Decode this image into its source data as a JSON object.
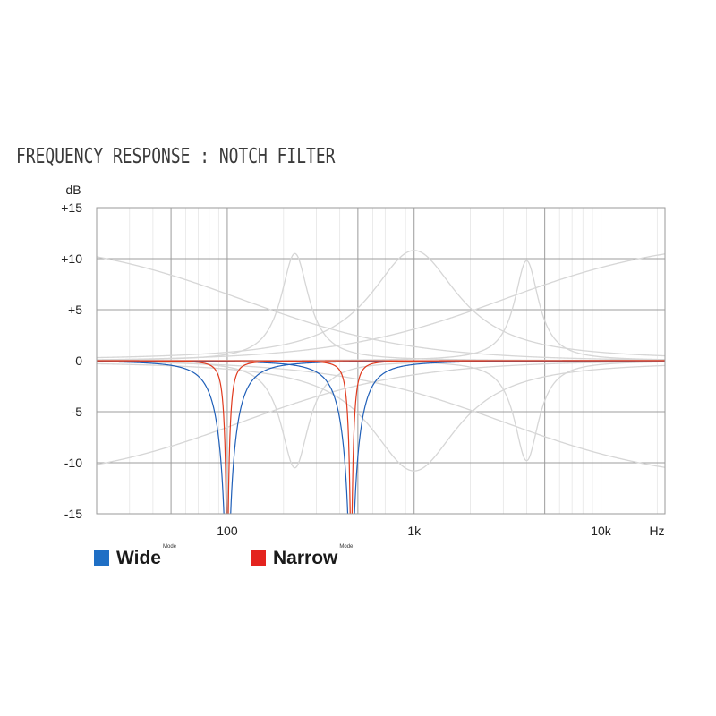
{
  "chart_data": {
    "type": "line",
    "title": "FREQUENCY RESPONSE : NOTCH FILTER",
    "ylabel": "dB",
    "xlabel": "Hz",
    "x_scale": "log",
    "xlim": [
      20,
      22000
    ],
    "ylim": [
      -15,
      15
    ],
    "y_ticks": [
      {
        "value": 15,
        "label": "+15"
      },
      {
        "value": 10,
        "label": "+10"
      },
      {
        "value": 5,
        "label": "+5"
      },
      {
        "value": 0,
        "label": "0"
      },
      {
        "value": -5,
        "label": "-5"
      },
      {
        "value": -10,
        "label": "-10"
      },
      {
        "value": -15,
        "label": "-15"
      }
    ],
    "x_ticks": [
      {
        "value": 100,
        "label": "100"
      },
      {
        "value": 1000,
        "label": "1k"
      },
      {
        "value": 10000,
        "label": "10k"
      }
    ],
    "grid": true,
    "legend_position": "bottom-left",
    "series": [
      {
        "name": "Wide",
        "color": "#1f5fb8",
        "kind": "notch",
        "center_hz": 100,
        "q": 1.5
      },
      {
        "name": "Wide",
        "color": "#1f5fb8",
        "kind": "notch",
        "center_hz": 460,
        "q": 1.5
      },
      {
        "name": "Narrow",
        "color": "#e03a1e",
        "kind": "notch",
        "center_hz": 100,
        "q": 5
      },
      {
        "name": "Narrow",
        "color": "#e03a1e",
        "kind": "notch",
        "center_hz": 460,
        "q": 5
      }
    ],
    "background_curves": [
      {
        "kind": "peak",
        "center_hz": 230,
        "gain_db": 10.5,
        "q": 3.5
      },
      {
        "kind": "peak",
        "center_hz": 230,
        "gain_db": -10.5,
        "q": 3.5
      },
      {
        "kind": "peak",
        "center_hz": 1000,
        "gain_db": 10.8,
        "q": 1.1
      },
      {
        "kind": "peak",
        "center_hz": 1000,
        "gain_db": -10.8,
        "q": 1.1
      },
      {
        "kind": "peak",
        "center_hz": 4000,
        "gain_db": 9.8,
        "q": 4
      },
      {
        "kind": "peak",
        "center_hz": 4000,
        "gain_db": -9.8,
        "q": 4
      },
      {
        "kind": "lowshelf",
        "center_hz": 120,
        "gain_db": 12,
        "q": 0.6
      },
      {
        "kind": "lowshelf",
        "center_hz": 120,
        "gain_db": -12,
        "q": 0.6
      },
      {
        "kind": "highshelf",
        "center_hz": 3000,
        "gain_db": 12,
        "q": 0.6
      },
      {
        "kind": "highshelf",
        "center_hz": 3000,
        "gain_db": -12,
        "q": 0.6
      }
    ],
    "background_color": "#d6d6d6"
  },
  "legend": {
    "wide_label": "Wide",
    "wide_sup": "Mode",
    "wide_color": "#1f6fc5",
    "narrow_label": "Narrow",
    "narrow_sup": "Mode",
    "narrow_color": "#e4231e"
  }
}
